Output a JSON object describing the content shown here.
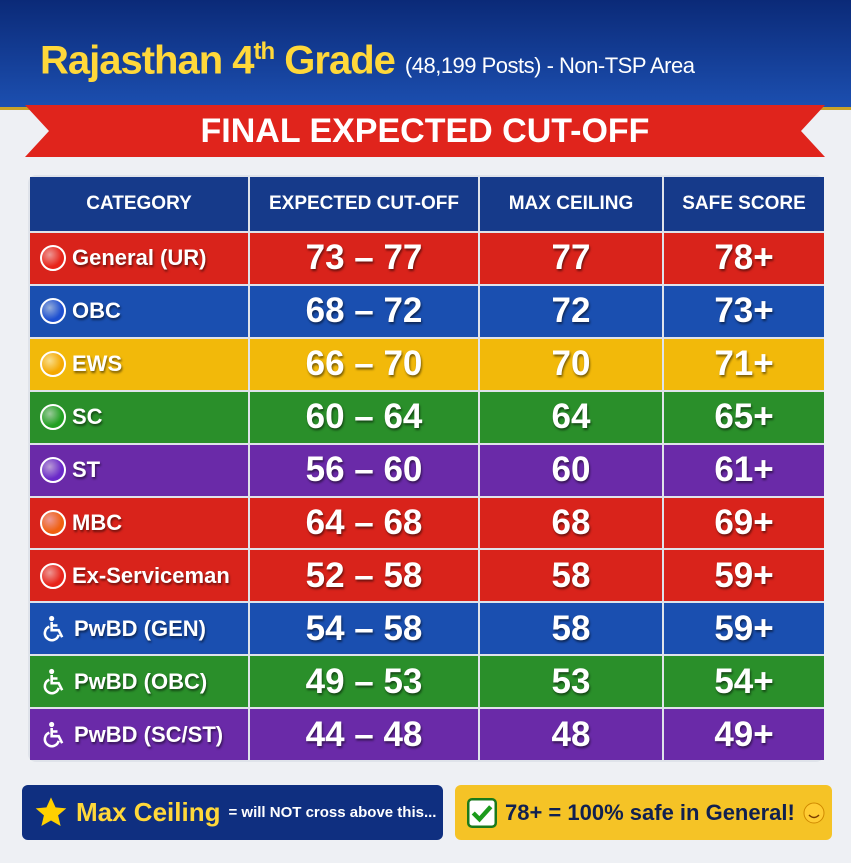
{
  "header": {
    "title_main": "Rajasthan 4",
    "title_sup": "th",
    "title_rest": " Grade",
    "subtitle": "(48,199 Posts) - Non-TSP Area",
    "banner": "FINAL EXPECTED CUT-OFF"
  },
  "table": {
    "columns": [
      "CATEGORY",
      "EXPECTED CUT-OFF",
      "MAX CEILING",
      "SAFE SCORE"
    ],
    "rows": [
      [
        "General (UR)",
        "73 – 77",
        "77",
        "78+"
      ],
      [
        "OBC",
        "68 – 72",
        "72",
        "73+"
      ],
      [
        "EWS",
        "66 – 70",
        "70",
        "71+"
      ],
      [
        "SC",
        "60 – 64",
        "64",
        "65+"
      ],
      [
        "ST",
        "56 – 60",
        "60",
        "61+"
      ],
      [
        "MBC",
        "64 – 68",
        "68",
        "69+"
      ],
      [
        "Ex-Serviceman",
        "52 – 58",
        "58",
        "59+"
      ],
      [
        "PwBD (GEN)",
        "54 – 58",
        "58",
        "59+"
      ],
      [
        "PwBD (OBC)",
        "49 – 53",
        "53",
        "54+"
      ],
      [
        "PwBD (SC/ST)",
        "44 – 48",
        "48",
        "49+"
      ]
    ]
  },
  "footer": {
    "left_label": "Max Ceiling",
    "left_note": "= will NOT cross above this...",
    "right_note": "78+ = 100% safe in General!"
  }
}
